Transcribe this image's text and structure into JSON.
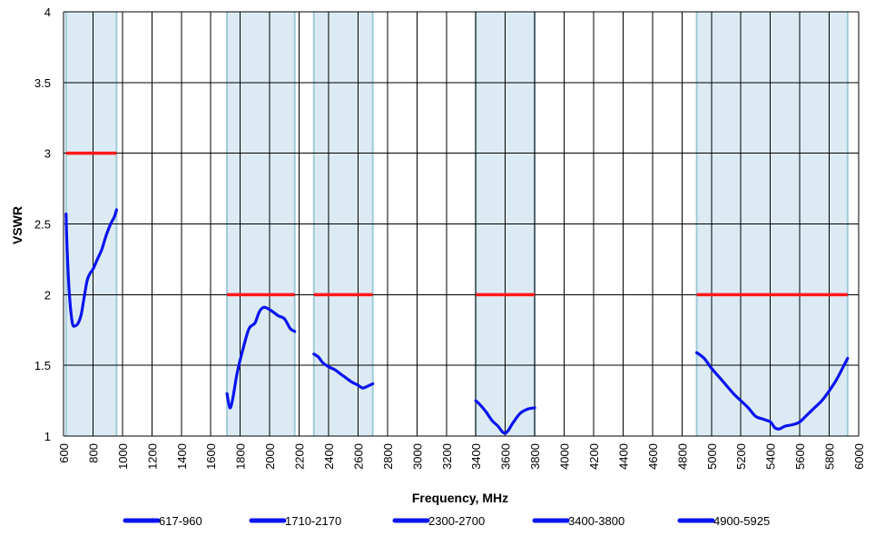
{
  "chart_data": {
    "type": "line",
    "title": "",
    "xlabel": "Frequency, MHz",
    "ylabel": "VSWR",
    "xlim": [
      600,
      6000
    ],
    "ylim": [
      1,
      4
    ],
    "x_ticks": [
      600,
      800,
      1000,
      1200,
      1400,
      1600,
      1800,
      2000,
      2200,
      2400,
      2600,
      2800,
      3000,
      3200,
      3400,
      3600,
      3800,
      4000,
      4200,
      4400,
      4600,
      4800,
      5000,
      5200,
      5400,
      5600,
      5800,
      6000
    ],
    "y_ticks": [
      1,
      1.5,
      2,
      2.5,
      3,
      3.5,
      4
    ],
    "y_tick_labels": [
      "1",
      "1.5",
      "2",
      "2.5",
      "3",
      "3.5",
      "4"
    ],
    "grid": true,
    "legend": "bottom",
    "colors": {
      "series": "#0a14f0",
      "limit": "#ff1a1a",
      "band_fill": "#dcebf3",
      "band_edge": "#9fcbd8"
    },
    "bands": [
      {
        "x0": 617,
        "x1": 960
      },
      {
        "x0": 1710,
        "x1": 2170
      },
      {
        "x0": 2300,
        "x1": 2700
      },
      {
        "x0": 3400,
        "x1": 3800
      },
      {
        "x0": 4900,
        "x1": 5925
      }
    ],
    "limits": [
      {
        "x0": 617,
        "x1": 960,
        "y": 3
      },
      {
        "x0": 1710,
        "x1": 2170,
        "y": 2
      },
      {
        "x0": 2300,
        "x1": 2700,
        "y": 2
      },
      {
        "x0": 3400,
        "x1": 3800,
        "y": 2
      },
      {
        "x0": 4900,
        "x1": 5925,
        "y": 2
      }
    ],
    "series": [
      {
        "name": "617-960",
        "x": [
          617,
          625,
          640,
          660,
          680,
          700,
          720,
          740,
          760,
          780,
          800,
          830,
          860,
          890,
          920,
          945,
          960
        ],
        "y": [
          2.57,
          2.3,
          2.0,
          1.8,
          1.78,
          1.8,
          1.86,
          1.98,
          2.1,
          2.15,
          2.18,
          2.25,
          2.32,
          2.42,
          2.5,
          2.55,
          2.6
        ]
      },
      {
        "name": "1710-2170",
        "x": [
          1710,
          1730,
          1750,
          1780,
          1820,
          1860,
          1900,
          1930,
          1960,
          1990,
          2020,
          2060,
          2100,
          2140,
          2170
        ],
        "y": [
          1.3,
          1.2,
          1.27,
          1.45,
          1.62,
          1.76,
          1.8,
          1.88,
          1.91,
          1.9,
          1.88,
          1.85,
          1.83,
          1.76,
          1.74
        ]
      },
      {
        "name": "2300-2700",
        "x": [
          2300,
          2330,
          2360,
          2400,
          2440,
          2480,
          2520,
          2560,
          2600,
          2630,
          2660,
          2700
        ],
        "y": [
          1.58,
          1.56,
          1.52,
          1.49,
          1.47,
          1.44,
          1.41,
          1.38,
          1.36,
          1.34,
          1.35,
          1.37
        ]
      },
      {
        "name": "3400-3800",
        "x": [
          3400,
          3430,
          3470,
          3510,
          3550,
          3580,
          3600,
          3620,
          3650,
          3700,
          3750,
          3800
        ],
        "y": [
          1.25,
          1.22,
          1.17,
          1.11,
          1.07,
          1.03,
          1.02,
          1.04,
          1.09,
          1.16,
          1.19,
          1.2
        ]
      },
      {
        "name": "4900-5925",
        "x": [
          4900,
          4950,
          5000,
          5050,
          5100,
          5150,
          5200,
          5250,
          5300,
          5350,
          5400,
          5430,
          5460,
          5500,
          5550,
          5600,
          5650,
          5700,
          5750,
          5800,
          5850,
          5900,
          5925
        ],
        "y": [
          1.59,
          1.55,
          1.48,
          1.42,
          1.36,
          1.3,
          1.25,
          1.2,
          1.14,
          1.12,
          1.1,
          1.06,
          1.05,
          1.07,
          1.08,
          1.1,
          1.15,
          1.2,
          1.25,
          1.32,
          1.4,
          1.5,
          1.55
        ]
      }
    ]
  }
}
